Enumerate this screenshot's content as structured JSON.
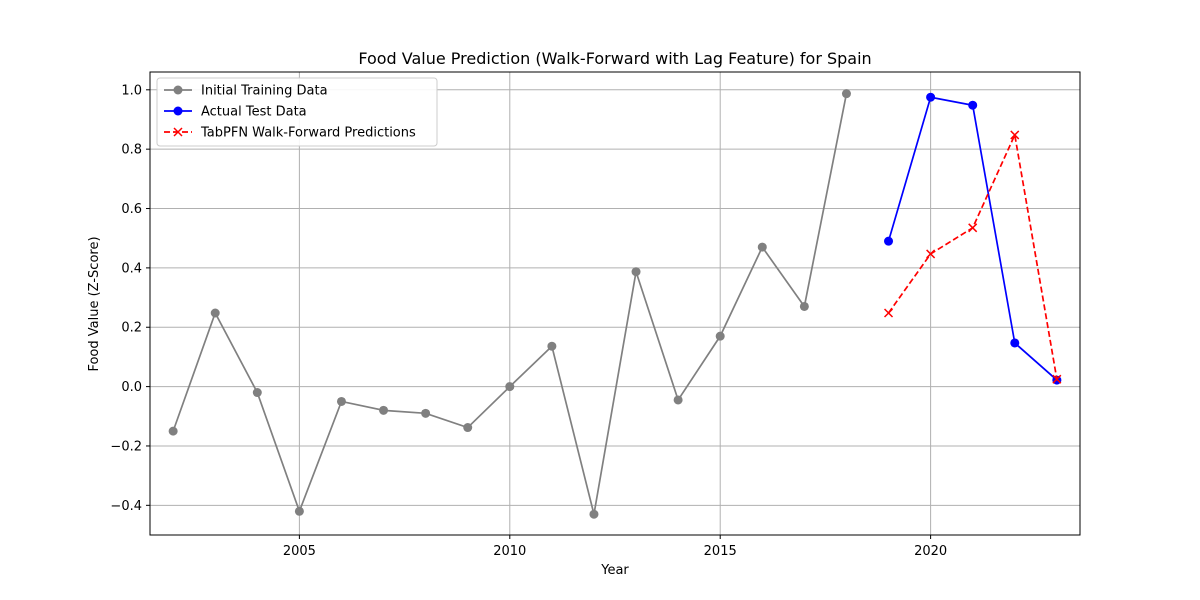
{
  "chart_data": {
    "type": "line",
    "title": "Food Value Prediction (Walk-Forward with Lag Feature) for Spain",
    "xlabel": "Year",
    "ylabel": "Food Value (Z-Score)",
    "xlim": [
      2001.45,
      2023.55
    ],
    "ylim": [
      -0.5,
      1.06
    ],
    "xticks": [
      2005,
      2010,
      2015,
      2020
    ],
    "yticks": [
      -0.4,
      -0.2,
      0.0,
      0.2,
      0.4,
      0.6,
      0.8,
      1.0
    ],
    "ytick_labels": [
      "−0.4",
      "−0.2",
      "0.0",
      "0.2",
      "0.4",
      "0.6",
      "0.8",
      "1.0"
    ],
    "grid": true,
    "legend_position": "top-left",
    "series": [
      {
        "name": "Initial Training Data",
        "color": "#808080",
        "marker": "circle",
        "line_style": "solid",
        "x": [
          2002,
          2003,
          2004,
          2005,
          2006,
          2007,
          2008,
          2009,
          2010,
          2011,
          2012,
          2013,
          2014,
          2015,
          2016,
          2017,
          2018
        ],
        "y": [
          -0.15,
          0.248,
          -0.02,
          -0.42,
          -0.05,
          -0.08,
          -0.09,
          -0.138,
          0.0,
          0.136,
          -0.43,
          0.387,
          -0.045,
          0.17,
          0.47,
          0.27,
          0.987
        ]
      },
      {
        "name": "Actual Test Data",
        "color": "#0000ff",
        "marker": "circle",
        "line_style": "solid",
        "x": [
          2019,
          2020,
          2021,
          2022,
          2023
        ],
        "y": [
          0.49,
          0.975,
          0.948,
          0.147,
          0.022
        ]
      },
      {
        "name": "TabPFN Walk-Forward Predictions",
        "color": "#ff0000",
        "marker": "x",
        "line_style": "dashed",
        "x": [
          2019,
          2020,
          2021,
          2022,
          2023
        ],
        "y": [
          0.248,
          0.447,
          0.535,
          0.848,
          0.025
        ]
      }
    ]
  }
}
